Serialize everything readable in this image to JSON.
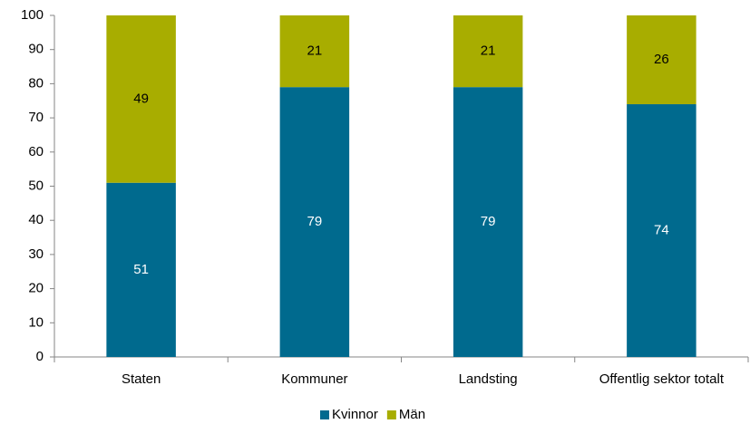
{
  "chart_data": {
    "type": "stacked_bar",
    "categories": [
      "Staten",
      "Kommuner",
      "Landsting",
      "Offentlig sektor totalt"
    ],
    "series": [
      {
        "name": "Kvinnor",
        "color": "#006a8e",
        "label_color": "#ffffff",
        "values": [
          51,
          79,
          79,
          74
        ]
      },
      {
        "name": "Män",
        "color": "#a8ad00",
        "label_color": "#000000",
        "values": [
          49,
          21,
          21,
          26
        ]
      }
    ],
    "ylim": [
      0,
      100
    ],
    "yticks": [
      0,
      10,
      20,
      30,
      40,
      50,
      60,
      70,
      80,
      90,
      100
    ],
    "grid": false,
    "legend": "bottom"
  }
}
